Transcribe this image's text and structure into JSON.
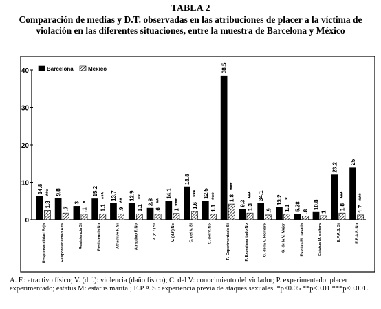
{
  "chart_data": {
    "type": "bar",
    "title": "TABLA 2",
    "subtitle": "Comparación de medias y D.T. observadas en las atribuciones de placer a la víctima de violación en las diferentes situaciones, entre la muestra de Barcelona y México",
    "categories": [
      "Responsabilidad Baja",
      "Responsabilidad Alta",
      "Resistencia Si",
      "Resistencia No",
      "Atractivo F. Si",
      "Atractivo F. No",
      "V. (d.f.) Si",
      "V. (d.f.) No",
      "C. del V. Si",
      "C. del V. No",
      "P. Experimentado Si",
      "P. Experimentado No",
      "G. de la V. Hombre",
      "G. de la V. Mujer",
      "Estatus M. casada",
      "Estatus M. soltera",
      "E.P.A.S. Si",
      "E.P.A.S. No"
    ],
    "series": [
      {
        "name": "Barcelona",
        "color": "#000000",
        "values": [
          6.2,
          5.8,
          3.6,
          5.6,
          4.4,
          4.4,
          3.1,
          5,
          8.8,
          5,
          38.5,
          2.8,
          4.4,
          3.3,
          1.5,
          2,
          12,
          14
        ],
        "labels": [
          "14.8",
          "9.8",
          "3",
          "15.2",
          "13.7",
          "12.9",
          "2.8",
          "14.1",
          "18.8",
          "12.5",
          "38.5",
          "9.3",
          "34.1",
          "13.2",
          "5.28",
          "10.8",
          "23.2",
          "25"
        ]
      },
      {
        "name": "México",
        "color": "#000000",
        "pattern": "hatch",
        "values": [
          2.5,
          1.8,
          1.5,
          1.6,
          1.6,
          1.6,
          1.5,
          1.7,
          2.2,
          1.5,
          4.2,
          1.8,
          1.3,
          1.5,
          1,
          1.1,
          1.8,
          1.3
        ],
        "labels": [
          "1.3",
          ".7",
          ".1",
          "1.1",
          ".9",
          "1.1",
          ".6",
          "1",
          "1.6",
          "1.1",
          "1.8",
          "1.3",
          ".9",
          "1.1",
          ".8",
          "1",
          "1.8",
          "1.7"
        ]
      }
    ],
    "significance": [
      "***",
      null,
      "*",
      "***",
      "**",
      "**",
      "**",
      "***",
      "***",
      "***",
      "***",
      "***",
      null,
      "*",
      null,
      null,
      "***",
      "***"
    ],
    "ylim": [
      0,
      40
    ],
    "yticks": [
      0,
      10,
      20,
      30,
      40
    ],
    "grid": false,
    "legend": "top-left",
    "note": "A. F.: atractivo físico; V. (d.f.): violencia (daño físico); C. del V: conocimiento del violador; P. experimentado: placer experimentado; estatus M: estatus marital; E.P.A.S.: experiencia previa de ataques sexuales. *p<0.05 **p<0.01 ***p<0.001."
  }
}
